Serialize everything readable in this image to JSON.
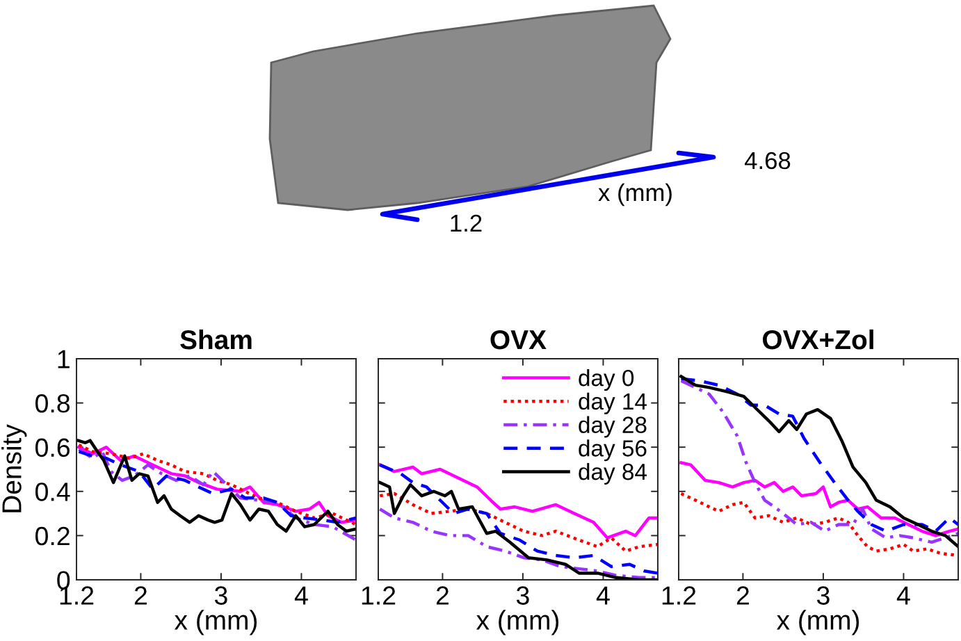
{
  "chart_data": [
    {
      "type": "other",
      "annotations": [
        "1.2",
        "x (mm)",
        "4.68"
      ]
    },
    {
      "type": "line",
      "title": "Sham",
      "xlabel": "x (mm)",
      "ylabel": "Density",
      "xlim": [
        1.2,
        4.68
      ],
      "xticks": [
        1.2,
        2,
        3,
        4
      ],
      "ylim": [
        0,
        1
      ],
      "yticks": [
        0,
        0.2,
        0.4,
        0.6,
        0.8,
        1
      ],
      "series": [
        {
          "color": "#ff00ff",
          "line_style": "solid",
          "x": [
            1.23,
            1.4,
            1.57,
            1.75,
            1.92,
            2.15,
            2.38,
            2.55,
            2.72,
            2.95,
            3.24,
            3.36,
            3.53,
            3.7,
            3.93,
            4.1,
            4.22,
            4.33,
            4.5,
            4.68
          ],
          "values": [
            0.6,
            0.57,
            0.6,
            0.54,
            0.56,
            0.52,
            0.48,
            0.47,
            0.44,
            0.41,
            0.4,
            0.42,
            0.35,
            0.34,
            0.31,
            0.32,
            0.35,
            0.29,
            0.26,
            0.27
          ]
        },
        {
          "color": "#ff0000",
          "line_style": "dotted",
          "x": [
            1.23,
            1.4,
            1.63,
            1.86,
            2.03,
            2.21,
            2.38,
            2.55,
            2.78,
            2.95,
            3.13,
            3.3,
            3.47,
            3.7,
            3.93,
            4.16,
            4.39,
            4.68
          ],
          "values": [
            0.61,
            0.58,
            0.57,
            0.55,
            0.57,
            0.54,
            0.52,
            0.49,
            0.48,
            0.45,
            0.43,
            0.4,
            0.37,
            0.35,
            0.31,
            0.28,
            0.3,
            0.25
          ]
        },
        {
          "color": "#9933ff",
          "line_style": "dashdot",
          "x": [
            1.23,
            1.4,
            1.52,
            1.63,
            1.77,
            1.92,
            2.09,
            2.26,
            2.44,
            2.61,
            2.78,
            2.9,
            3.07,
            3.24,
            3.47,
            3.7,
            3.93,
            4.16,
            4.39,
            4.68
          ],
          "values": [
            0.59,
            0.55,
            0.58,
            0.49,
            0.45,
            0.47,
            0.52,
            0.48,
            0.45,
            0.47,
            0.43,
            0.49,
            0.43,
            0.37,
            0.36,
            0.35,
            0.28,
            0.25,
            0.24,
            0.18
          ]
        },
        {
          "color": "#0000ff",
          "line_style": "dashed",
          "x": [
            1.23,
            1.4,
            1.57,
            1.75,
            1.98,
            2.15,
            2.32,
            2.55,
            2.72,
            2.9,
            3.13,
            3.3,
            3.53,
            3.7,
            3.87,
            4.04,
            4.27,
            4.45,
            4.68
          ],
          "values": [
            0.58,
            0.56,
            0.55,
            0.52,
            0.49,
            0.41,
            0.47,
            0.45,
            0.42,
            0.39,
            0.41,
            0.37,
            0.37,
            0.35,
            0.29,
            0.28,
            0.27,
            0.26,
            0.28
          ]
        },
        {
          "color": "#000000",
          "line_style": "solid",
          "x": [
            1.22,
            1.31,
            1.37,
            1.46,
            1.54,
            1.66,
            1.8,
            1.89,
            1.98,
            2.09,
            2.21,
            2.29,
            2.38,
            2.49,
            2.61,
            2.72,
            2.84,
            2.92,
            3.01,
            3.13,
            3.24,
            3.36,
            3.47,
            3.59,
            3.7,
            3.81,
            3.93,
            4.04,
            4.16,
            4.33,
            4.45,
            4.56,
            4.68
          ],
          "values": [
            0.63,
            0.62,
            0.63,
            0.58,
            0.54,
            0.44,
            0.56,
            0.45,
            0.48,
            0.47,
            0.35,
            0.38,
            0.32,
            0.29,
            0.26,
            0.29,
            0.27,
            0.26,
            0.27,
            0.39,
            0.34,
            0.27,
            0.32,
            0.31,
            0.25,
            0.22,
            0.29,
            0.24,
            0.25,
            0.31,
            0.25,
            0.22,
            0.23
          ]
        }
      ]
    },
    {
      "type": "line",
      "title": "OVX",
      "xlabel": "x (mm)",
      "xlim": [
        1.2,
        4.68
      ],
      "xticks": [
        1.2,
        2,
        3,
        4
      ],
      "ylim": [
        0,
        1
      ],
      "yticks": [
        0,
        0.2,
        0.4,
        0.6,
        0.8,
        1
      ],
      "tick_labels": "x",
      "legend": "top right",
      "series": [
        {
          "name": "day 0",
          "color": "#ff00ff",
          "line_style": "solid",
          "x": [
            1.22,
            1.4,
            1.63,
            1.74,
            1.97,
            2.2,
            2.43,
            2.6,
            2.72,
            2.9,
            3.12,
            3.41,
            3.64,
            3.88,
            4.05,
            4.28,
            4.4,
            4.57,
            4.68
          ],
          "values": [
            0.52,
            0.49,
            0.51,
            0.48,
            0.5,
            0.46,
            0.42,
            0.36,
            0.32,
            0.33,
            0.31,
            0.34,
            0.3,
            0.26,
            0.19,
            0.22,
            0.2,
            0.28,
            0.28
          ]
        },
        {
          "name": "day 14",
          "color": "#ff0000",
          "line_style": "dotted",
          "x": [
            1.22,
            1.4,
            1.63,
            1.86,
            2.09,
            2.32,
            2.55,
            2.78,
            3.01,
            3.24,
            3.41,
            3.7,
            3.93,
            4.1,
            4.28,
            4.45,
            4.68
          ],
          "values": [
            0.38,
            0.39,
            0.34,
            0.3,
            0.31,
            0.32,
            0.3,
            0.26,
            0.22,
            0.2,
            0.22,
            0.18,
            0.15,
            0.19,
            0.13,
            0.15,
            0.16
          ]
        },
        {
          "name": "day 28",
          "color": "#9933ff",
          "line_style": "dashdot",
          "x": [
            1.22,
            1.4,
            1.63,
            1.86,
            2.09,
            2.32,
            2.55,
            2.78,
            3.01,
            3.24,
            3.47,
            3.7,
            3.93,
            4.16,
            4.45,
            4.68
          ],
          "values": [
            0.32,
            0.28,
            0.26,
            0.22,
            0.2,
            0.2,
            0.15,
            0.13,
            0.1,
            0.09,
            0.06,
            0.05,
            0.04,
            0.02,
            0.01,
            0.01
          ]
        },
        {
          "name": "day 56",
          "color": "#0000ff",
          "line_style": "dashed",
          "x": [
            1.22,
            1.48,
            1.63,
            1.8,
            1.97,
            2.14,
            2.32,
            2.55,
            2.72,
            2.96,
            3.18,
            3.41,
            3.64,
            3.88,
            4.1,
            4.33,
            4.51,
            4.68
          ],
          "values": [
            0.52,
            0.48,
            0.44,
            0.42,
            0.36,
            0.3,
            0.32,
            0.3,
            0.21,
            0.18,
            0.13,
            0.11,
            0.1,
            0.11,
            0.06,
            0.07,
            0.04,
            0.03
          ]
        },
        {
          "name": "day 84",
          "color": "#000000",
          "line_style": "solid",
          "x": [
            1.22,
            1.34,
            1.4,
            1.51,
            1.6,
            1.74,
            1.89,
            2.03,
            2.11,
            2.2,
            2.37,
            2.55,
            2.66,
            2.84,
            3.07,
            3.3,
            3.53,
            3.7,
            3.93,
            4.16,
            4.45,
            4.68
          ],
          "values": [
            0.44,
            0.42,
            0.3,
            0.38,
            0.43,
            0.38,
            0.4,
            0.38,
            0.4,
            0.32,
            0.33,
            0.21,
            0.22,
            0.17,
            0.1,
            0.09,
            0.07,
            0.03,
            0.03,
            0.01,
            0.0,
            0.0
          ]
        }
      ]
    },
    {
      "type": "line",
      "title": "OVX+Zol",
      "xlabel": "x (mm)",
      "xlim": [
        1.2,
        4.68
      ],
      "xticks": [
        1.2,
        2,
        3,
        4
      ],
      "ylim": [
        0,
        1
      ],
      "yticks": [
        0,
        0.2,
        0.4,
        0.6,
        0.8,
        1
      ],
      "tick_labels": "x",
      "series": [
        {
          "color": "#ff00ff",
          "line_style": "solid",
          "x": [
            1.23,
            1.35,
            1.53,
            1.7,
            1.87,
            2.01,
            2.15,
            2.27,
            2.39,
            2.5,
            2.62,
            2.73,
            2.91,
            3.0,
            3.09,
            3.19,
            3.31,
            3.43,
            3.55,
            3.72,
            3.89,
            4.06,
            4.23,
            4.4,
            4.57,
            4.68
          ],
          "values": [
            0.53,
            0.52,
            0.45,
            0.44,
            0.42,
            0.44,
            0.45,
            0.42,
            0.44,
            0.4,
            0.42,
            0.38,
            0.39,
            0.42,
            0.33,
            0.35,
            0.36,
            0.32,
            0.33,
            0.28,
            0.28,
            0.25,
            0.22,
            0.2,
            0.22,
            0.23
          ]
        },
        {
          "color": "#ff0000",
          "line_style": "dotted",
          "x": [
            1.23,
            1.41,
            1.58,
            1.7,
            1.87,
            2.01,
            2.15,
            2.32,
            2.5,
            2.67,
            2.85,
            3.02,
            3.19,
            3.31,
            3.43,
            3.55,
            3.66,
            3.83,
            4.0,
            4.12,
            4.29,
            4.46,
            4.68
          ],
          "values": [
            0.39,
            0.36,
            0.33,
            0.31,
            0.34,
            0.35,
            0.28,
            0.29,
            0.26,
            0.28,
            0.25,
            0.26,
            0.28,
            0.26,
            0.2,
            0.15,
            0.13,
            0.14,
            0.16,
            0.13,
            0.14,
            0.12,
            0.11
          ]
        },
        {
          "color": "#9933ff",
          "line_style": "dashdot",
          "x": [
            1.23,
            1.41,
            1.58,
            1.75,
            1.93,
            2.04,
            2.15,
            2.27,
            2.39,
            2.5,
            2.67,
            2.85,
            3.02,
            3.19,
            3.37,
            3.49,
            3.6,
            3.78,
            3.95,
            4.12,
            4.35,
            4.52,
            4.68
          ],
          "values": [
            0.9,
            0.87,
            0.84,
            0.76,
            0.65,
            0.53,
            0.44,
            0.36,
            0.33,
            0.3,
            0.25,
            0.26,
            0.22,
            0.25,
            0.25,
            0.32,
            0.23,
            0.19,
            0.2,
            0.19,
            0.17,
            0.19,
            0.21
          ]
        },
        {
          "color": "#0000ff",
          "line_style": "dashed",
          "x": [
            1.23,
            1.46,
            1.7,
            1.93,
            2.1,
            2.27,
            2.45,
            2.62,
            2.76,
            2.85,
            2.96,
            3.14,
            3.31,
            3.43,
            3.6,
            3.78,
            4.0,
            4.23,
            4.4,
            4.57,
            4.68
          ],
          "values": [
            0.91,
            0.9,
            0.88,
            0.84,
            0.79,
            0.79,
            0.75,
            0.74,
            0.64,
            0.59,
            0.53,
            0.44,
            0.36,
            0.31,
            0.25,
            0.22,
            0.25,
            0.25,
            0.22,
            0.28,
            0.25
          ]
        },
        {
          "color": "#000000",
          "line_style": "solid",
          "x": [
            1.23,
            1.41,
            1.58,
            1.81,
            2.01,
            2.15,
            2.32,
            2.45,
            2.57,
            2.67,
            2.79,
            2.93,
            3.09,
            3.23,
            3.37,
            3.53,
            3.66,
            3.83,
            4.0,
            4.18,
            4.35,
            4.52,
            4.68
          ],
          "values": [
            0.92,
            0.88,
            0.87,
            0.85,
            0.83,
            0.78,
            0.72,
            0.67,
            0.72,
            0.68,
            0.75,
            0.77,
            0.73,
            0.63,
            0.51,
            0.44,
            0.36,
            0.33,
            0.28,
            0.25,
            0.22,
            0.2,
            0.15
          ]
        }
      ]
    }
  ]
}
